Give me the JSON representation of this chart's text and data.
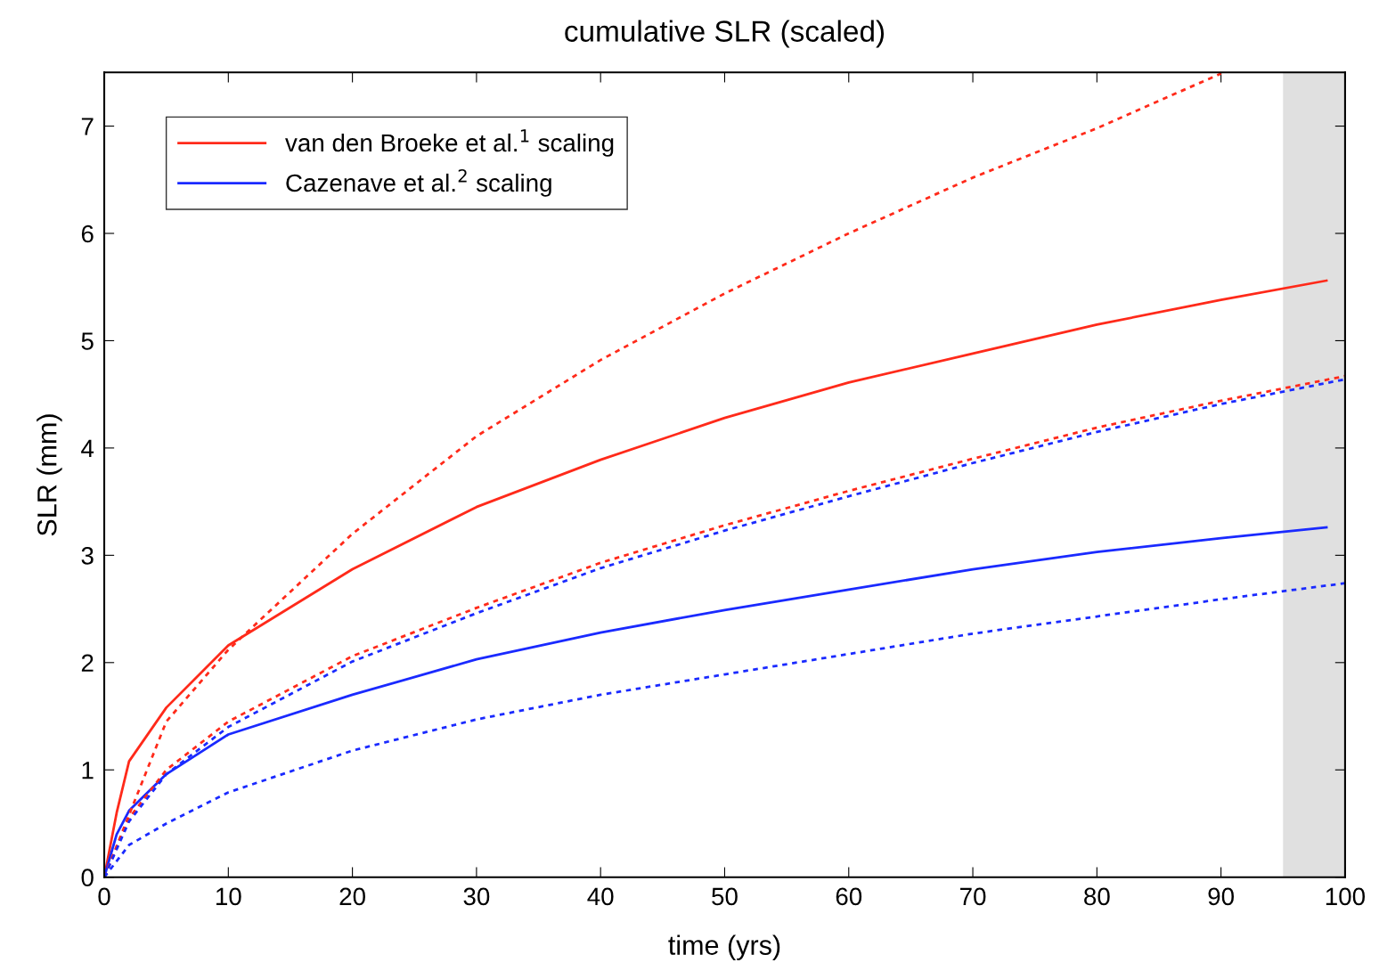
{
  "chart_data": {
    "type": "line",
    "title": "cumulative SLR (scaled)",
    "xlabel": "time (yrs)",
    "ylabel": "SLR (mm)",
    "xlim": [
      0,
      100
    ],
    "ylim": [
      0,
      7.5
    ],
    "xticks": [
      0,
      10,
      20,
      30,
      40,
      50,
      60,
      70,
      80,
      90,
      100
    ],
    "yticks": [
      0,
      1,
      2,
      3,
      4,
      5,
      6,
      7
    ],
    "grid": false,
    "legend": "top left",
    "bands": [
      {
        "axis": "x",
        "from": 95,
        "to": 100,
        "color": "#e0e0e0"
      }
    ],
    "series": [
      {
        "name": "van den Broeke et al.$^{1}$ scaling",
        "color": "#ff2a1a",
        "line_style": "solid",
        "x": [
          0,
          1,
          2,
          5,
          10,
          20,
          30,
          40,
          50,
          60,
          70,
          80,
          90,
          98.5
        ],
        "values": [
          0,
          0.6,
          1.08,
          1.58,
          2.16,
          2.87,
          3.45,
          3.89,
          4.28,
          4.61,
          4.88,
          5.15,
          5.38,
          5.56
        ]
      },
      {
        "name": "Cazenave et al.$^{2}$ scaling",
        "color": "#1a2aff",
        "line_style": "solid",
        "x": [
          0,
          1,
          2,
          5,
          10,
          20,
          30,
          40,
          50,
          60,
          70,
          80,
          90,
          98.5
        ],
        "values": [
          0,
          0.4,
          0.62,
          0.96,
          1.33,
          1.7,
          2.03,
          2.28,
          2.49,
          2.68,
          2.87,
          3.03,
          3.16,
          3.26
        ]
      },
      {
        "color": "#ff2a1a",
        "line_style": "dotted",
        "x": [
          0,
          2,
          5,
          10,
          20,
          30,
          40,
          50,
          60,
          70,
          80,
          90
        ],
        "values": [
          0,
          0.58,
          1.45,
          2.12,
          3.2,
          4.11,
          4.82,
          5.44,
          6.0,
          6.52,
          6.98,
          7.49
        ]
      },
      {
        "color": "#ff2a1a",
        "line_style": "dotted",
        "x": [
          0,
          2,
          5,
          10,
          20,
          30,
          40,
          50,
          60,
          70,
          80,
          90,
          100
        ],
        "values": [
          0,
          0.55,
          1.0,
          1.45,
          2.06,
          2.51,
          2.93,
          3.28,
          3.6,
          3.9,
          4.19,
          4.44,
          4.67
        ]
      },
      {
        "color": "#1a2aff",
        "line_style": "dotted",
        "x": [
          0,
          2,
          5,
          10,
          20,
          30,
          40,
          50,
          60,
          70,
          80,
          90,
          100
        ],
        "values": [
          0,
          0.52,
          0.96,
          1.4,
          2.01,
          2.46,
          2.88,
          3.23,
          3.55,
          3.86,
          4.15,
          4.41,
          4.64
        ]
      },
      {
        "color": "#1a2aff",
        "line_style": "dotted",
        "x": [
          0,
          2,
          5,
          10,
          20,
          30,
          40,
          50,
          60,
          70,
          80,
          90,
          100
        ],
        "values": [
          0,
          0.3,
          0.5,
          0.79,
          1.18,
          1.47,
          1.7,
          1.89,
          2.08,
          2.27,
          2.43,
          2.59,
          2.74
        ]
      }
    ]
  }
}
